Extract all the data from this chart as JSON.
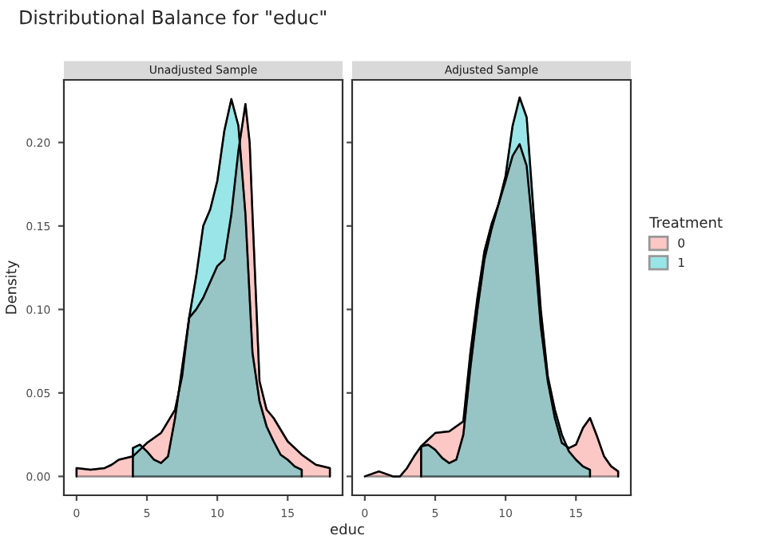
{
  "chart_data": [
    {
      "type": "area",
      "title": "Distributional Balance for \"educ\"",
      "subtitle": "Unadjusted Sample",
      "xlabel": "educ",
      "ylabel": "Density",
      "legend_title": "Treatment",
      "legend": "right",
      "grid": false,
      "xlim": [
        -0.9,
        18.9
      ],
      "xticks": [
        0,
        5,
        10,
        15
      ],
      "ylim": [
        -0.0113,
        0.2375
      ],
      "yticks": [
        {
          "value": 0,
          "label": "0.00"
        },
        {
          "value": 0.05,
          "label": "0.05"
        },
        {
          "value": 0.1,
          "label": "0.10"
        },
        {
          "value": 0.15,
          "label": "0.15"
        },
        {
          "value": 0.2,
          "label": "0.20"
        }
      ],
      "series": [
        {
          "name": "0",
          "color": "#f8766d",
          "x": [
            0,
            1,
            2,
            2.5,
            3,
            4,
            5,
            6,
            7,
            7.5,
            8,
            8.5,
            9,
            10,
            10.5,
            11,
            11.5,
            12,
            12.3,
            12.5,
            13,
            13.5,
            14,
            15,
            16,
            17,
            18
          ],
          "values": [
            0.005,
            0.004,
            0.005,
            0.007,
            0.01,
            0.012,
            0.02,
            0.026,
            0.04,
            0.06,
            0.095,
            0.1,
            0.107,
            0.126,
            0.13,
            0.157,
            0.195,
            0.223,
            0.2,
            0.157,
            0.057,
            0.04,
            0.035,
            0.021,
            0.013,
            0.007,
            0.005
          ]
        },
        {
          "name": "1",
          "color": "#00bfc4",
          "x": [
            4,
            4.5,
            5,
            5.5,
            6,
            6.5,
            7,
            7.5,
            8,
            8.5,
            9,
            9.5,
            10,
            10.5,
            11,
            11.5,
            12,
            12.5,
            13,
            13.5,
            14,
            14.5,
            15,
            15.5,
            16
          ],
          "values": [
            0.017,
            0.019,
            0.015,
            0.01,
            0.008,
            0.012,
            0.035,
            0.065,
            0.095,
            0.12,
            0.15,
            0.16,
            0.177,
            0.207,
            0.226,
            0.21,
            0.157,
            0.074,
            0.045,
            0.03,
            0.021,
            0.013,
            0.01,
            0.006,
            0.004
          ]
        }
      ]
    },
    {
      "type": "area",
      "subtitle": "Adjusted Sample",
      "tick_labels": "x",
      "grid": false,
      "xlim": [
        -0.9,
        18.9
      ],
      "xticks": [
        0,
        5,
        10,
        15
      ],
      "ylim": [
        -0.0113,
        0.2375
      ],
      "yticks": [
        {
          "value": 0,
          "label": null
        },
        {
          "value": 0.05,
          "label": null
        },
        {
          "value": 0.1,
          "label": null
        },
        {
          "value": 0.15,
          "label": null
        },
        {
          "value": 0.2,
          "label": null
        }
      ],
      "series": [
        {
          "name": "0",
          "color": "#f8766d",
          "x": [
            0,
            1,
            2,
            2.5,
            3,
            3.5,
            4,
            5,
            6,
            6.5,
            7,
            7.5,
            8,
            8.5,
            9,
            9.5,
            10,
            10.5,
            11,
            11.5,
            12,
            12.5,
            13,
            13.5,
            14,
            14.5,
            15,
            15.5,
            16,
            16.5,
            17,
            17.5,
            18
          ],
          "values": [
            0.0,
            0.003,
            0.0,
            0.0,
            0.005,
            0.012,
            0.018,
            0.026,
            0.027,
            0.03,
            0.033,
            0.074,
            0.107,
            0.135,
            0.151,
            0.163,
            0.177,
            0.192,
            0.199,
            0.186,
            0.142,
            0.09,
            0.057,
            0.035,
            0.02,
            0.017,
            0.019,
            0.029,
            0.035,
            0.024,
            0.012,
            0.006,
            0.003
          ]
        },
        {
          "name": "1",
          "color": "#00bfc4",
          "x": [
            4,
            4.5,
            5,
            5.5,
            6,
            6.5,
            7,
            7.5,
            8,
            8.5,
            9,
            9.5,
            10,
            10.5,
            11,
            11.5,
            12,
            12.5,
            13,
            13.5,
            14,
            14.5,
            15,
            15.5,
            16
          ],
          "values": [
            0.018,
            0.019,
            0.016,
            0.011,
            0.008,
            0.01,
            0.025,
            0.065,
            0.1,
            0.13,
            0.148,
            0.163,
            0.18,
            0.21,
            0.227,
            0.215,
            0.157,
            0.1,
            0.06,
            0.04,
            0.025,
            0.015,
            0.01,
            0.006,
            0.004
          ]
        }
      ]
    }
  ]
}
